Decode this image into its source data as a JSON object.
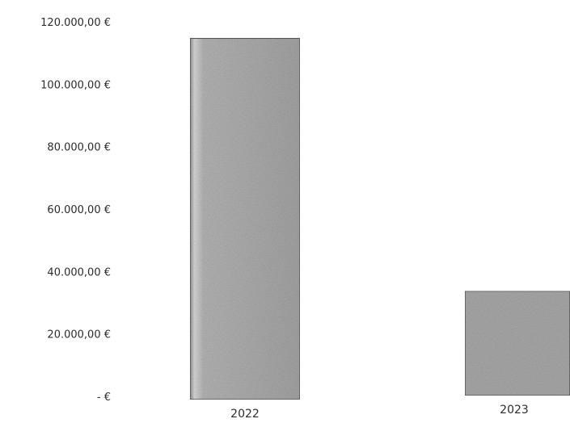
{
  "chart_data": {
    "type": "bar",
    "title": "",
    "xlabel": "",
    "ylabel": "",
    "categories": [
      "2022",
      "2023"
    ],
    "values": [
      115000,
      34000
    ],
    "ylim": [
      0,
      120000
    ],
    "y_tick_values": [
      0,
      20000,
      40000,
      60000,
      80000,
      100000,
      120000
    ],
    "y_tick_labels": [
      "-  €",
      "20.000,00 €",
      "40.000,00 €",
      "60.000,00 €",
      "80.000,00 €",
      "100.000,00 €",
      "120.000,00 €"
    ],
    "grid": false,
    "legend": "none",
    "colors": {
      "bar_fill": "#a9a9a9",
      "bar_edge": "#5a5a5a",
      "bar_highlight": "#d8d8d8",
      "text": "#2b2b2b"
    }
  }
}
